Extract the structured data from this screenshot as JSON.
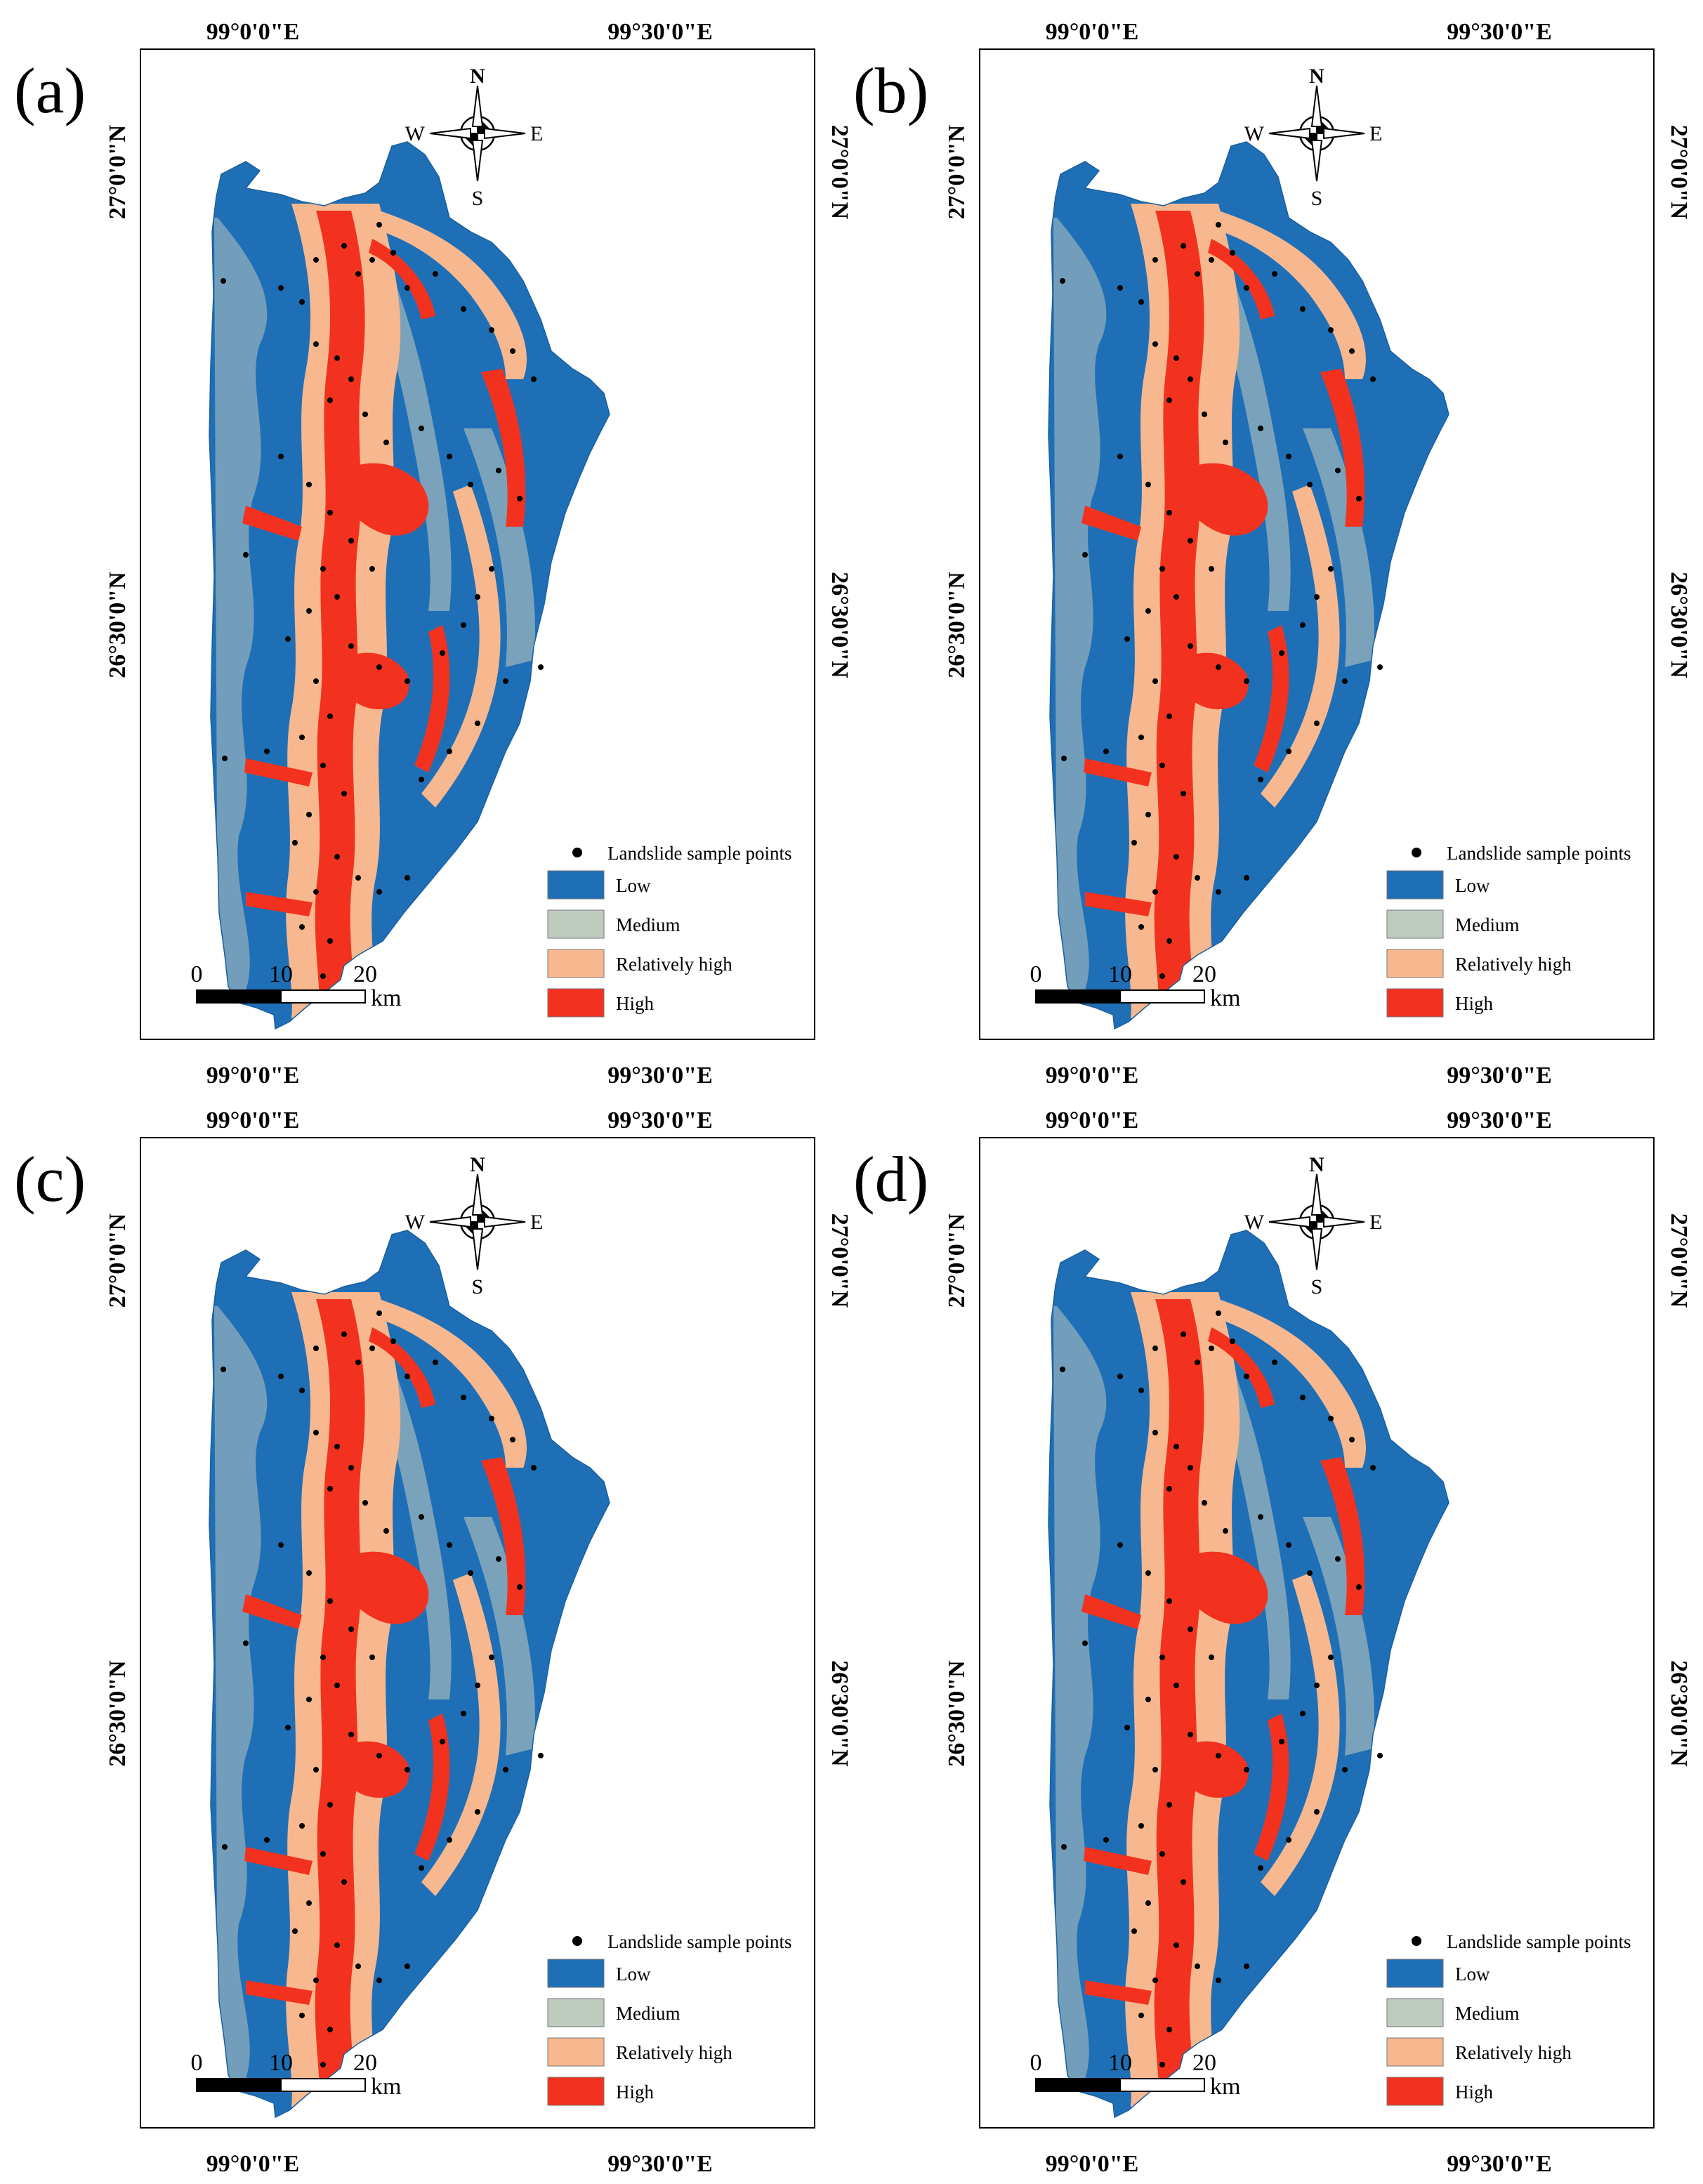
{
  "colors": {
    "low": "#1f6fb6",
    "medium": "#bfcbbf",
    "relatively_high": "#f7b88f",
    "high": "#f2321f",
    "sample_point": "#000000"
  },
  "axes": {
    "lon_left": "99°0'0\"E",
    "lon_right": "99°30'0\"E",
    "lat_top": "27°0'0\"N",
    "lat_bottom": "26°30'0\"N"
  },
  "compass": {
    "north": "N",
    "south": "S",
    "east": "E",
    "west": "W"
  },
  "legend": {
    "points_label": "Landslide sample points",
    "classes": [
      {
        "key": "low",
        "label": "Low"
      },
      {
        "key": "medium",
        "label": "Medium"
      },
      {
        "key": "relatively_high",
        "label": "Relatively high"
      },
      {
        "key": "high",
        "label": "High"
      }
    ]
  },
  "scale_bar": {
    "ticks": [
      "0",
      "10",
      "20"
    ],
    "unit": "km"
  },
  "panels": [
    {
      "label": "(a)"
    },
    {
      "label": "(b)"
    },
    {
      "label": "(c)"
    },
    {
      "label": "(d)"
    }
  ]
}
